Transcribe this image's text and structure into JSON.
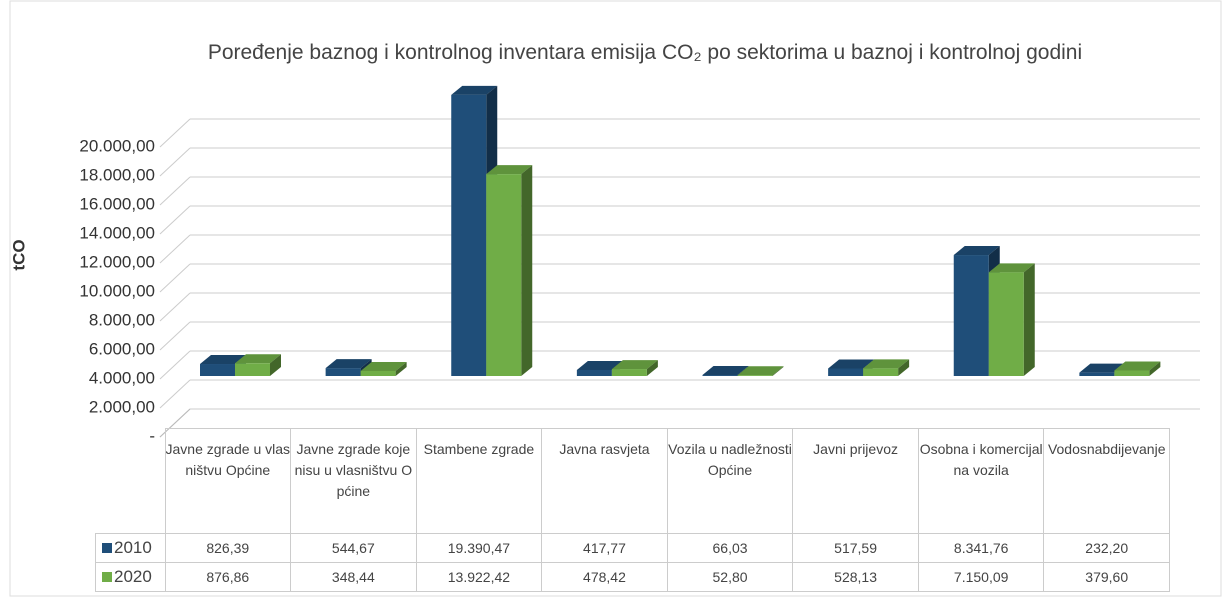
{
  "chart_data": {
    "type": "bar3d",
    "title": "Poređenje baznog i kontrolnog inventara emisija CO₂ po sektorima u baznoj i kontrolnoj godini",
    "y_label": "tCO",
    "categories": [
      "Javne zgrade u vlasništvu Općine",
      "Javne zgrade koje nisu u vlasništvu Općine",
      "Stambene zgrade",
      "Javna rasvjeta",
      "Vozila u nadležnosti Općine",
      "Javni prijevoz",
      "Osobna i komercijalna vozila",
      "Vodosnabdijevanje"
    ],
    "series": [
      {
        "name": "2010",
        "color": "#1f4e79",
        "values": [
          826.39,
          544.67,
          19390.47,
          417.77,
          66.03,
          517.59,
          8341.76,
          232.2
        ],
        "value_labels": [
          "826,39",
          "544,67",
          "19.390,47",
          "417,77",
          "66,03",
          "517,59",
          "8.341,76",
          "232,20"
        ]
      },
      {
        "name": "2020",
        "color": "#70ad47",
        "values": [
          876.86,
          348.44,
          13922.42,
          478.42,
          52.8,
          528.13,
          7150.09,
          379.6
        ],
        "value_labels": [
          "876,86",
          "348,44",
          "13.922,42",
          "478,42",
          "52,80",
          "528,13",
          "7.150,09",
          "379,60"
        ]
      }
    ],
    "ylim": [
      0,
      20000
    ],
    "yticks": [
      {
        "value": 0,
        "label": "-"
      },
      {
        "value": 2000,
        "label": "2.000,00"
      },
      {
        "value": 4000,
        "label": "4.000,00"
      },
      {
        "value": 6000,
        "label": "6.000,00"
      },
      {
        "value": 8000,
        "label": "8.000,00"
      },
      {
        "value": 10000,
        "label": "10.000,00"
      },
      {
        "value": 12000,
        "label": "12.000,00"
      },
      {
        "value": 14000,
        "label": "14.000,00"
      },
      {
        "value": 16000,
        "label": "16.000,00"
      },
      {
        "value": 18000,
        "label": "18.000,00"
      },
      {
        "value": 20000,
        "label": "20.000,00"
      }
    ],
    "grid": true
  }
}
